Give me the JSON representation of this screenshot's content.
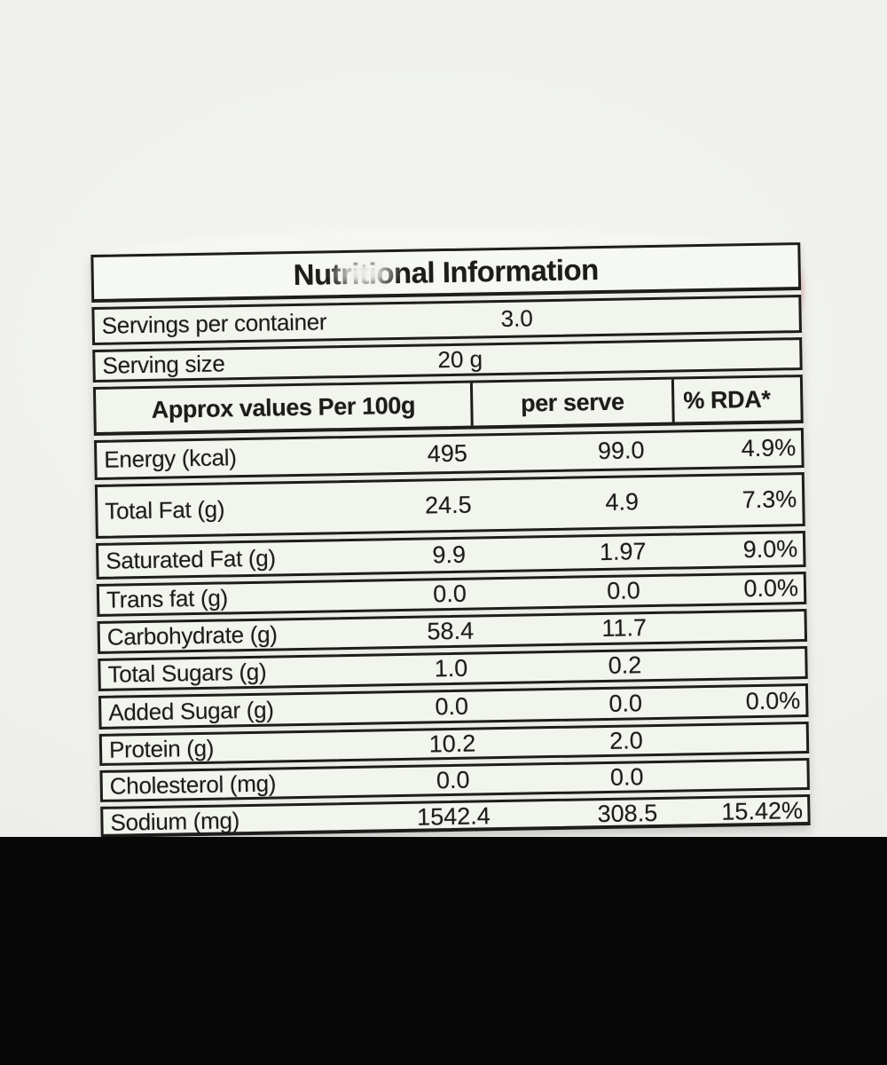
{
  "label": {
    "title": "Nutritional Information",
    "servings": {
      "label": "Servings per container",
      "value": "3.0"
    },
    "serving_size": {
      "label": "Serving size",
      "value": "20 g"
    },
    "columns": [
      "Approx values Per 100g",
      "per serve",
      "% RDA*"
    ],
    "rows": [
      {
        "label": "Energy (kcal)",
        "per100g": "495",
        "per_serve": "99.0",
        "rda": "4.9%"
      },
      {
        "label": "Total Fat (g)",
        "per100g": "24.5",
        "per_serve": "4.9",
        "rda": "7.3%"
      },
      {
        "label": "Saturated Fat (g)",
        "per100g": "9.9",
        "per_serve": "1.97",
        "rda": "9.0%"
      },
      {
        "label": "Trans fat (g)",
        "per100g": "0.0",
        "per_serve": "0.0",
        "rda": "0.0%"
      },
      {
        "label": "Carbohydrate (g)",
        "per100g": "58.4",
        "per_serve": "11.7",
        "rda": ""
      },
      {
        "label": "Total Sugars (g)",
        "per100g": "1.0",
        "per_serve": "0.2",
        "rda": ""
      },
      {
        "label": "Added Sugar (g)",
        "per100g": "0.0",
        "per_serve": "0.0",
        "rda": "0.0%"
      },
      {
        "label": "Protein (g)",
        "per100g": "10.2",
        "per_serve": "2.0",
        "rda": ""
      },
      {
        "label": "Cholesterol (mg)",
        "per100g": "0.0",
        "per_serve": "0.0",
        "rda": ""
      },
      {
        "label": "Sodium (mg)",
        "per100g": "1542.4",
        "per_serve": "308.5",
        "rda": "15.42%"
      }
    ]
  },
  "colors": {
    "photo_background": "#eff0ed",
    "table_cell": "#f2f4ee",
    "line": "#1d1d1b",
    "letterbox": "#070707",
    "smudge_pink": "#e89a9a"
  },
  "chart_data": {
    "type": "table",
    "title": "Nutritional Information",
    "columns": [
      "Approx values Per 100g",
      "per serve",
      "% RDA*"
    ],
    "servings_per_container": 3.0,
    "serving_size_g": 20,
    "rows": [
      [
        "Energy (kcal)",
        495,
        99.0,
        "4.9%"
      ],
      [
        "Total Fat (g)",
        24.5,
        4.9,
        "7.3%"
      ],
      [
        "Saturated Fat (g)",
        9.9,
        1.97,
        "9.0%"
      ],
      [
        "Trans fat (g)",
        0.0,
        0.0,
        "0.0%"
      ],
      [
        "Carbohydrate (g)",
        58.4,
        11.7,
        null
      ],
      [
        "Total Sugars (g)",
        1.0,
        0.2,
        null
      ],
      [
        "Added Sugar (g)",
        0.0,
        0.0,
        "0.0%"
      ],
      [
        "Protein (g)",
        10.2,
        2.0,
        null
      ],
      [
        "Cholesterol (mg)",
        0.0,
        0.0,
        null
      ],
      [
        "Sodium (mg)",
        1542.4,
        308.5,
        "15.42%"
      ]
    ]
  }
}
